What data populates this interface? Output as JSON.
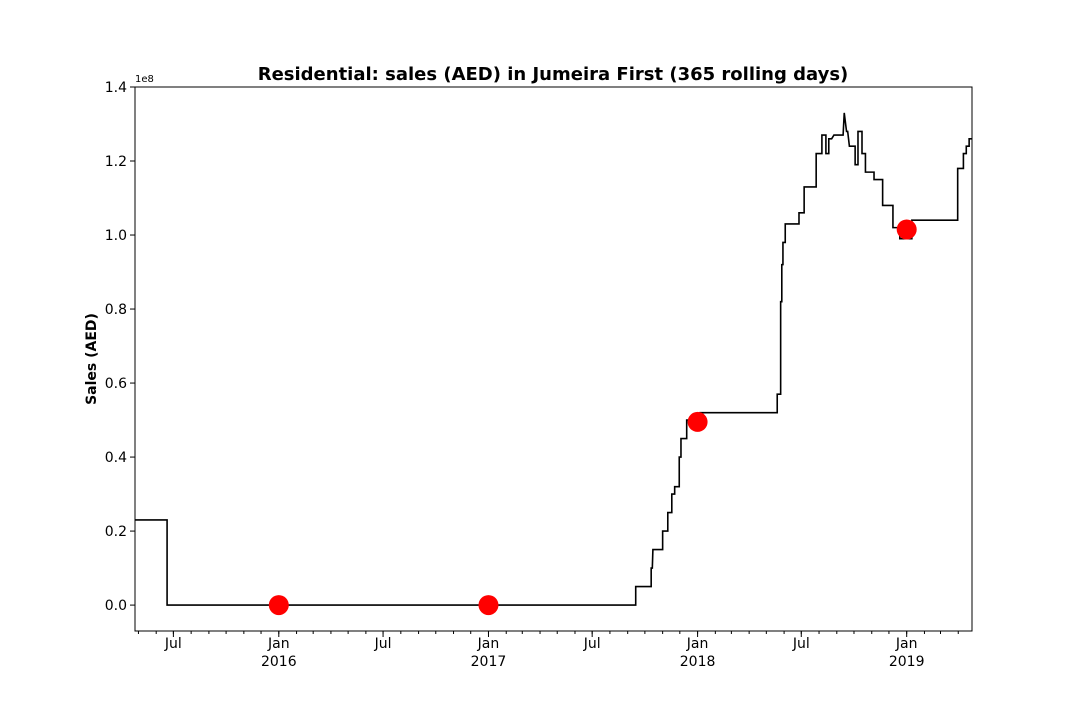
{
  "chart_data": {
    "type": "line",
    "title": "Residential: sales (AED) in Jumeira First (365 rolling days)",
    "xlabel": "",
    "ylabel": "Sales (AED)",
    "y_offset_label": "1e8",
    "ylim": [
      -0.07,
      1.4
    ],
    "xlim": [
      "2015-04-25",
      "2019-04-25"
    ],
    "y_ticks": [
      {
        "value": 0.0,
        "label": "0.0"
      },
      {
        "value": 0.2,
        "label": "0.2"
      },
      {
        "value": 0.4,
        "label": "0.4"
      },
      {
        "value": 0.6,
        "label": "0.6"
      },
      {
        "value": 0.8,
        "label": "0.8"
      },
      {
        "value": 1.0,
        "label": "1.0"
      },
      {
        "value": 1.2,
        "label": "1.2"
      },
      {
        "value": 1.4,
        "label": "1.4"
      }
    ],
    "x_ticks": [
      {
        "date": "2015-07-01",
        "label": "Jul",
        "sublabel": ""
      },
      {
        "date": "2016-01-01",
        "label": "Jan",
        "sublabel": "2016"
      },
      {
        "date": "2016-07-01",
        "label": "Jul",
        "sublabel": ""
      },
      {
        "date": "2017-01-01",
        "label": "Jan",
        "sublabel": "2017"
      },
      {
        "date": "2017-07-01",
        "label": "Jul",
        "sublabel": ""
      },
      {
        "date": "2018-01-01",
        "label": "Jan",
        "sublabel": "2018"
      },
      {
        "date": "2018-07-01",
        "label": "Jul",
        "sublabel": ""
      },
      {
        "date": "2019-01-01",
        "label": "Jan",
        "sublabel": "2019"
      }
    ],
    "line_color": "#000000",
    "marker_color": "#ff0000",
    "series": [
      {
        "x": [
          "2015-04-25",
          "2015-06-20",
          "2015-06-20",
          "2017-09-15",
          "2017-09-15",
          "2017-10-12",
          "2017-10-12",
          "2017-10-14",
          "2017-10-15",
          "2017-11-01",
          "2017-11-01",
          "2017-11-10",
          "2017-11-10",
          "2017-11-17",
          "2017-11-17",
          "2017-11-22",
          "2017-11-22",
          "2017-11-30",
          "2017-11-30",
          "2017-12-03",
          "2017-12-03",
          "2017-12-13",
          "2017-12-13",
          "2018-01-01",
          "2018-01-05",
          "2018-01-05",
          "2018-05-20",
          "2018-05-20",
          "2018-05-26",
          "2018-05-26",
          "2018-05-28",
          "2018-05-28",
          "2018-05-30",
          "2018-05-30",
          "2018-06-03",
          "2018-06-03",
          "2018-06-27",
          "2018-06-27",
          "2018-07-06",
          "2018-07-06",
          "2018-07-27",
          "2018-07-27",
          "2018-08-06",
          "2018-08-06",
          "2018-08-13",
          "2018-08-13",
          "2018-08-18",
          "2018-08-18",
          "2018-08-21",
          "2018-08-23",
          "2018-08-27",
          "2018-09-12",
          "2018-09-14",
          "2018-09-18",
          "2018-09-20",
          "2018-09-23",
          "2018-10-03",
          "2018-10-03",
          "2018-10-08",
          "2018-10-08",
          "2018-10-15",
          "2018-10-15",
          "2018-10-21",
          "2018-10-21",
          "2018-11-05",
          "2018-11-05",
          "2018-11-20",
          "2018-11-20",
          "2018-12-08",
          "2018-12-08",
          "2018-12-20",
          "2018-12-20",
          "2018-12-30",
          "2018-12-30",
          "2019-01-10",
          "2019-01-10",
          "2019-02-12",
          "2019-02-12",
          "2019-03-31",
          "2019-03-31",
          "2019-04-10",
          "2019-04-10",
          "2019-04-15",
          "2019-04-15",
          "2019-04-20",
          "2019-04-20",
          "2019-04-25"
        ],
        "y": [
          0.23,
          0.23,
          0.0,
          0.0,
          0.05,
          0.05,
          0.1,
          0.1,
          0.15,
          0.15,
          0.2,
          0.2,
          0.25,
          0.25,
          0.3,
          0.3,
          0.32,
          0.32,
          0.4,
          0.4,
          0.45,
          0.45,
          0.5,
          0.5,
          0.52,
          0.52,
          0.52,
          0.57,
          0.57,
          0.82,
          0.82,
          0.92,
          0.92,
          0.98,
          0.98,
          1.03,
          1.03,
          1.06,
          1.06,
          1.13,
          1.13,
          1.22,
          1.22,
          1.27,
          1.27,
          1.22,
          1.22,
          1.26,
          1.26,
          1.26,
          1.27,
          1.27,
          1.33,
          1.28,
          1.28,
          1.24,
          1.24,
          1.19,
          1.19,
          1.28,
          1.28,
          1.22,
          1.22,
          1.17,
          1.17,
          1.15,
          1.15,
          1.08,
          1.08,
          1.02,
          1.02,
          0.99,
          0.99,
          0.99,
          0.99,
          1.04,
          1.04,
          1.04,
          1.04,
          1.18,
          1.18,
          1.22,
          1.22,
          1.24,
          1.24,
          1.26,
          1.26
        ]
      }
    ],
    "markers": [
      {
        "x": "2016-01-01",
        "y": 0.0
      },
      {
        "x": "2017-01-01",
        "y": 0.0
      },
      {
        "x": "2018-01-01",
        "y": 0.495
      },
      {
        "x": "2019-01-01",
        "y": 1.015
      }
    ]
  }
}
